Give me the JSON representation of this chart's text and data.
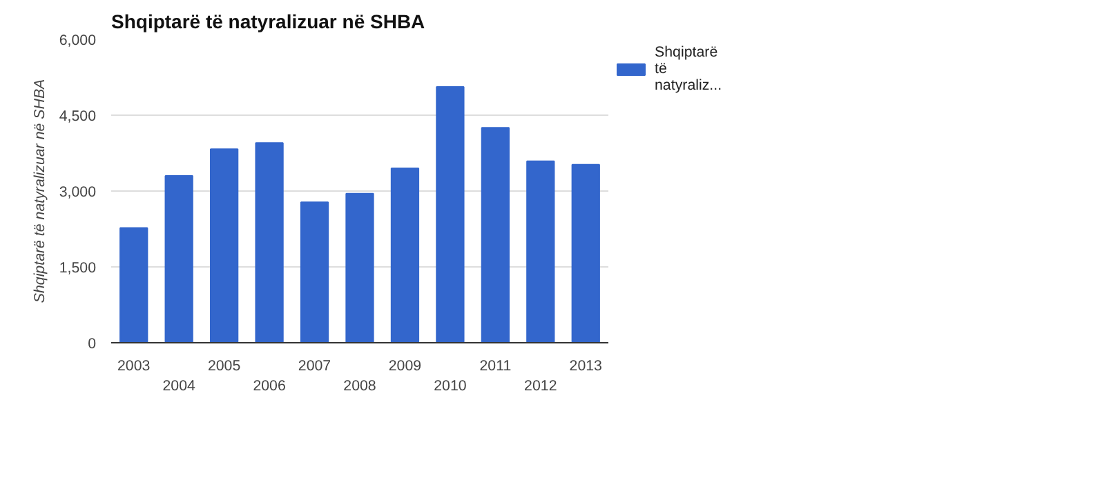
{
  "chart_data": {
    "type": "bar",
    "title": "Shqiptarë të natyralizuar në SHBA",
    "ylabel": "Shqiptarë të natyralizuar në SHBA",
    "categories": [
      "2003",
      "2004",
      "2005",
      "2006",
      "2007",
      "2008",
      "2009",
      "2010",
      "2011",
      "2012",
      "2013"
    ],
    "series": [
      {
        "name": "Shqiptarë të natyraliz...",
        "color": "#3366cc",
        "values": [
          2270,
          3300,
          3830,
          3950,
          2780,
          2950,
          3450,
          5060,
          4250,
          3590,
          3520
        ]
      }
    ],
    "ylim": [
      0,
      6000
    ],
    "yticks": [
      {
        "value": 0,
        "label": "0"
      },
      {
        "value": 1500,
        "label": "1,500"
      },
      {
        "value": 3000,
        "label": "3,000"
      },
      {
        "value": 4500,
        "label": "4,500"
      },
      {
        "value": 6000,
        "label": "6,000"
      }
    ],
    "grid": "y",
    "legend": "right"
  }
}
